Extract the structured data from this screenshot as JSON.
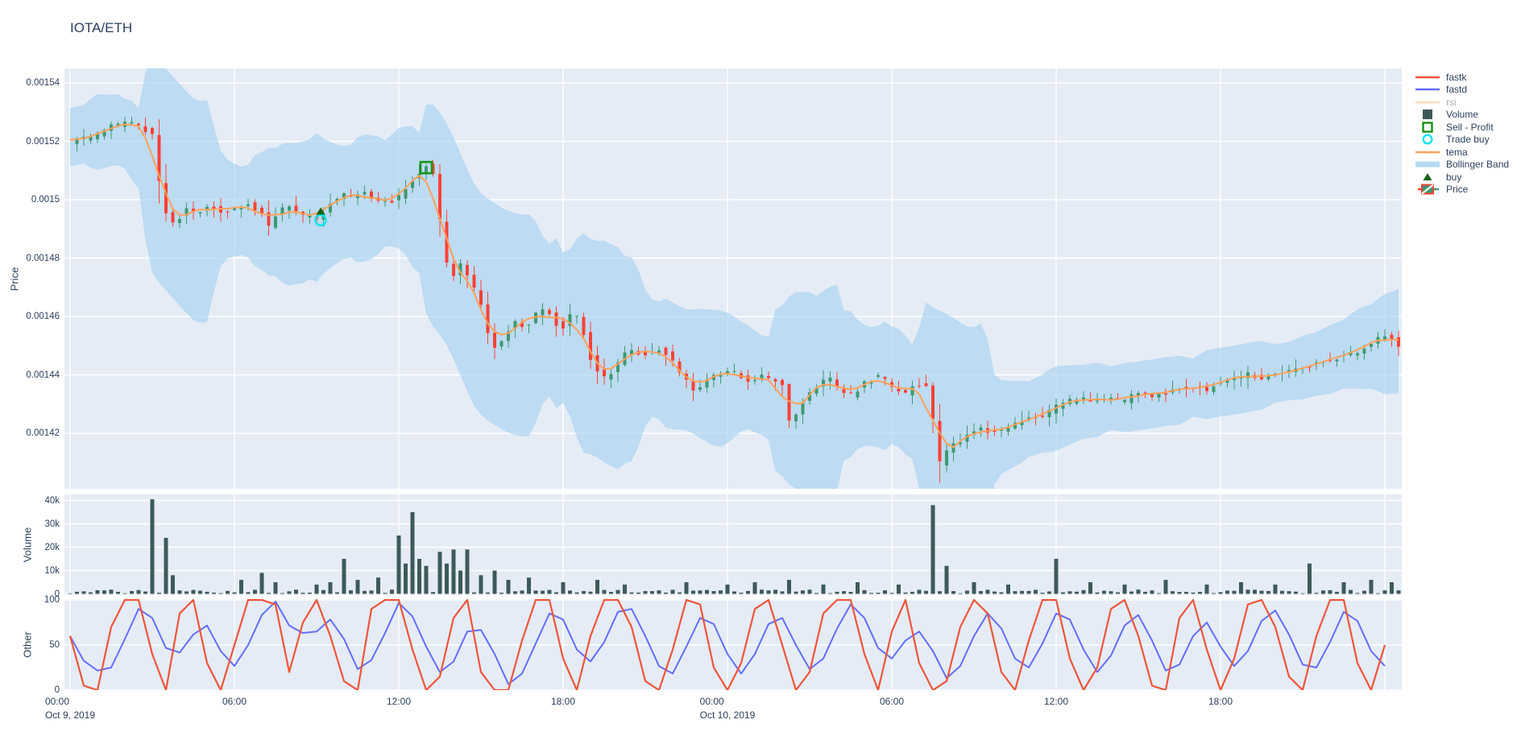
{
  "title": "IOTA/ETH",
  "axis_titles": {
    "price": "Price",
    "volume": "Volume",
    "other": "Other"
  },
  "colors": {
    "paper": "#ffffff",
    "plot_bg": "#e5ecf6",
    "grid": "#ffffff",
    "font": "#2a3f5f",
    "candle_up": "#3D9970",
    "candle_down": "#FF4136",
    "volume_bar": "#3d5a5a",
    "tema": "#FFA15A",
    "bollinger": "#a8d3ef",
    "fastk": "#EF553B",
    "fastd": "#636EFA",
    "rsi": "#FFA15A",
    "buy_marker": "#156315",
    "sell_marker": "#149414",
    "trade_buy": "#00E5EE"
  },
  "legend": {
    "items": [
      {
        "label": "fastk",
        "type": "line",
        "color": "#EF553B",
        "faded": false
      },
      {
        "label": "fastd",
        "type": "line",
        "color": "#636EFA",
        "faded": false
      },
      {
        "label": "rsi",
        "type": "line",
        "color": "#FFA15A",
        "faded": true
      },
      {
        "label": "Volume",
        "type": "square",
        "color": "#3d5a5a",
        "faded": false
      },
      {
        "label": "Sell - Profit",
        "type": "open-square",
        "color": "#149414",
        "faded": false
      },
      {
        "label": "Trade buy",
        "type": "open-circle",
        "color": "#00E5EE",
        "faded": false
      },
      {
        "label": "tema",
        "type": "line",
        "color": "#FFA15A",
        "faded": false
      },
      {
        "label": "Bollinger Band",
        "type": "band",
        "color": "#b5dbf4",
        "faded": false
      },
      {
        "label": "buy",
        "type": "triangle",
        "color": "#156315",
        "faded": false
      },
      {
        "label": "Price",
        "type": "candle",
        "color": "#3D9970",
        "color2": "#FF4136",
        "faded": false
      }
    ]
  },
  "axes": {
    "price_ticks": [
      "0.00154",
      "0.00152",
      "0.0015",
      "0.00148",
      "0.00146",
      "0.00144",
      "0.00142"
    ],
    "volume_ticks": [
      "40k",
      "30k",
      "20k",
      "10k",
      "0"
    ],
    "other_ticks": [
      "100",
      "50",
      "0"
    ],
    "x_ticks": [
      {
        "hour": 0,
        "label": "00:00",
        "sub": "Oct 9, 2019"
      },
      {
        "hour": 6,
        "label": "06:00",
        "sub": ""
      },
      {
        "hour": 12,
        "label": "12:00",
        "sub": ""
      },
      {
        "hour": 18,
        "label": "18:00",
        "sub": ""
      },
      {
        "hour": 24,
        "label": "00:00",
        "sub": "Oct 10, 2019"
      },
      {
        "hour": 30,
        "label": "06:00",
        "sub": ""
      },
      {
        "hour": 36,
        "label": "12:00",
        "sub": ""
      },
      {
        "hour": 42,
        "label": "18:00",
        "sub": ""
      }
    ]
  },
  "chart_data": {
    "type": "candlestick",
    "title": "IOTA/ETH",
    "hours_span": 48.5,
    "candle_step_hours": 0.25,
    "price_unit": 1e-05,
    "price_axis_range": [
      0.0014005,
      0.0015455
    ],
    "volume_axis_range_k": [
      0,
      42.6
    ],
    "oscillator_range": [
      0,
      100
    ],
    "price_close_anchors": [
      [
        0,
        152
      ],
      [
        0.5,
        152.1
      ],
      [
        1,
        152.2
      ],
      [
        1.5,
        152.5
      ],
      [
        2,
        152.6
      ],
      [
        2.4,
        152.7
      ],
      [
        2.7,
        152.4
      ],
      [
        3,
        152.3
      ],
      [
        3.2,
        150.8
      ],
      [
        3.5,
        149.6
      ],
      [
        3.8,
        149.1
      ],
      [
        4.2,
        149.7
      ],
      [
        4.6,
        149.5
      ],
      [
        5,
        149.8
      ],
      [
        5.5,
        149.6
      ],
      [
        6,
        149.7
      ],
      [
        6.5,
        149.9
      ],
      [
        7,
        149.5
      ],
      [
        7.3,
        149
      ],
      [
        7.6,
        149.6
      ],
      [
        8,
        149.8
      ],
      [
        8.4,
        149.4
      ],
      [
        8.8,
        149.5
      ],
      [
        9.1,
        149.3
      ],
      [
        9.5,
        149.9
      ],
      [
        10,
        150.2
      ],
      [
        10.4,
        150
      ],
      [
        10.8,
        150.4
      ],
      [
        11.1,
        149.8
      ],
      [
        11.4,
        150
      ],
      [
        11.7,
        149.9
      ],
      [
        12,
        150.1
      ],
      [
        12.3,
        150.4
      ],
      [
        12.6,
        150.8
      ],
      [
        13,
        151.2
      ],
      [
        13.3,
        150.9
      ],
      [
        13.6,
        148.5
      ],
      [
        13.9,
        147.2
      ],
      [
        14.2,
        147.9
      ],
      [
        14.6,
        147.3
      ],
      [
        15,
        146.4
      ],
      [
        15.3,
        145.2
      ],
      [
        15.6,
        144.8
      ],
      [
        15.9,
        145.4
      ],
      [
        16.2,
        145.9
      ],
      [
        16.6,
        145.6
      ],
      [
        17,
        146.1
      ],
      [
        17.4,
        146.3
      ],
      [
        17.7,
        145.8
      ],
      [
        18,
        145.6
      ],
      [
        18.3,
        146.2
      ],
      [
        18.6,
        145.9
      ],
      [
        19,
        144.6
      ],
      [
        19.3,
        144
      ],
      [
        19.6,
        143.8
      ],
      [
        20,
        144.4
      ],
      [
        20.4,
        144.9
      ],
      [
        20.8,
        144.7
      ],
      [
        21.2,
        144.8
      ],
      [
        21.6,
        144.9
      ],
      [
        22,
        144.5
      ],
      [
        22.4,
        143.9
      ],
      [
        22.8,
        143.5
      ],
      [
        23.2,
        143.8
      ],
      [
        23.6,
        144
      ],
      [
        24,
        144.2
      ],
      [
        24.4,
        144
      ],
      [
        24.8,
        143.7
      ],
      [
        25.2,
        144
      ],
      [
        25.6,
        143.9
      ],
      [
        26,
        143.6
      ],
      [
        26.3,
        142.1
      ],
      [
        26.6,
        142.9
      ],
      [
        26.9,
        143.3
      ],
      [
        27.3,
        143.7
      ],
      [
        27.7,
        143.9
      ],
      [
        28.1,
        143.5
      ],
      [
        28.5,
        143.3
      ],
      [
        29,
        143.7
      ],
      [
        29.5,
        144
      ],
      [
        30,
        143.6
      ],
      [
        30.4,
        143.3
      ],
      [
        30.8,
        143.6
      ],
      [
        31.2,
        143.8
      ],
      [
        31.5,
        142.5
      ],
      [
        31.7,
        140.9
      ],
      [
        32,
        141.4
      ],
      [
        32.4,
        141.7
      ],
      [
        32.8,
        141.9
      ],
      [
        33.2,
        142.2
      ],
      [
        33.6,
        142
      ],
      [
        34,
        142.1
      ],
      [
        34.5,
        142.3
      ],
      [
        35,
        142.5
      ],
      [
        35.5,
        142.6
      ],
      [
        36,
        142.9
      ],
      [
        36.5,
        143.1
      ],
      [
        37,
        143.2
      ],
      [
        37.5,
        143.1
      ],
      [
        38,
        143.2
      ],
      [
        38.5,
        143.1
      ],
      [
        39,
        143.4
      ],
      [
        39.5,
        143.3
      ],
      [
        40,
        143.4
      ],
      [
        40.5,
        143.5
      ],
      [
        41,
        143.6
      ],
      [
        41.5,
        143.5
      ],
      [
        42,
        143.8
      ],
      [
        42.5,
        143.9
      ],
      [
        43,
        144
      ],
      [
        43.5,
        143.9
      ],
      [
        44,
        144
      ],
      [
        44.5,
        144.1
      ],
      [
        45,
        144.2
      ],
      [
        45.5,
        144.4
      ],
      [
        46,
        144.5
      ],
      [
        46.5,
        144.7
      ],
      [
        47,
        144.8
      ],
      [
        47.5,
        145.1
      ],
      [
        48,
        145.4
      ],
      [
        48.5,
        145
      ]
    ],
    "volume_spikes_k": [
      [
        3.1,
        40.5
      ],
      [
        3.4,
        24
      ],
      [
        3.7,
        8
      ],
      [
        6.3,
        6
      ],
      [
        7.1,
        9
      ],
      [
        7.6,
        5
      ],
      [
        9,
        4
      ],
      [
        9.6,
        5
      ],
      [
        9.9,
        15
      ],
      [
        10.5,
        6
      ],
      [
        11.3,
        7
      ],
      [
        11.9,
        25
      ],
      [
        12.2,
        13
      ],
      [
        12.5,
        35
      ],
      [
        12.8,
        15
      ],
      [
        13.1,
        12
      ],
      [
        13.4,
        18
      ],
      [
        13.7,
        13
      ],
      [
        14,
        19
      ],
      [
        14.3,
        10
      ],
      [
        14.6,
        19
      ],
      [
        15,
        8
      ],
      [
        15.5,
        10
      ],
      [
        16,
        6
      ],
      [
        16.8,
        7
      ],
      [
        18,
        5
      ],
      [
        19.2,
        6
      ],
      [
        20.3,
        4
      ],
      [
        22.6,
        5
      ],
      [
        24,
        4
      ],
      [
        25,
        5
      ],
      [
        26.3,
        6
      ],
      [
        27.5,
        4
      ],
      [
        28.8,
        5
      ],
      [
        30.2,
        4
      ],
      [
        31.6,
        38
      ],
      [
        31.9,
        12
      ],
      [
        33,
        5
      ],
      [
        34.2,
        4
      ],
      [
        36,
        15
      ],
      [
        37.3,
        5
      ],
      [
        38.6,
        4
      ],
      [
        40,
        6
      ],
      [
        41.5,
        4
      ],
      [
        42.8,
        5
      ],
      [
        44,
        4
      ],
      [
        45.2,
        13
      ],
      [
        46.5,
        5
      ],
      [
        47.6,
        6
      ],
      [
        48.2,
        5
      ]
    ],
    "fastk_step_hours": 0.5,
    "fastk": [
      60,
      5,
      0,
      70,
      100,
      100,
      40,
      0,
      85,
      100,
      30,
      0,
      50,
      100,
      100,
      95,
      20,
      75,
      100,
      60,
      10,
      0,
      90,
      100,
      100,
      45,
      0,
      15,
      80,
      100,
      20,
      0,
      0,
      55,
      100,
      100,
      35,
      0,
      60,
      100,
      100,
      70,
      10,
      0,
      45,
      100,
      95,
      25,
      0,
      30,
      90,
      100,
      50,
      0,
      20,
      85,
      100,
      100,
      40,
      0,
      65,
      100,
      30,
      0,
      10,
      70,
      100,
      85,
      20,
      0,
      55,
      100,
      100,
      35,
      0,
      25,
      90,
      100,
      60,
      5,
      0,
      80,
      100,
      45,
      0,
      35,
      95,
      100,
      70,
      15,
      0,
      60,
      100,
      100,
      30,
      0,
      50
    ],
    "fastd_rule": "sma3_of_fastk",
    "rsi_visible": false,
    "trades": {
      "buy": {
        "hour": 9.15,
        "price_u": 149.6
      },
      "trade_buy": {
        "hour": 9.15,
        "price_u": 149.3
      },
      "sell": {
        "hour": 13.0,
        "price_u": 151.1
      }
    }
  }
}
